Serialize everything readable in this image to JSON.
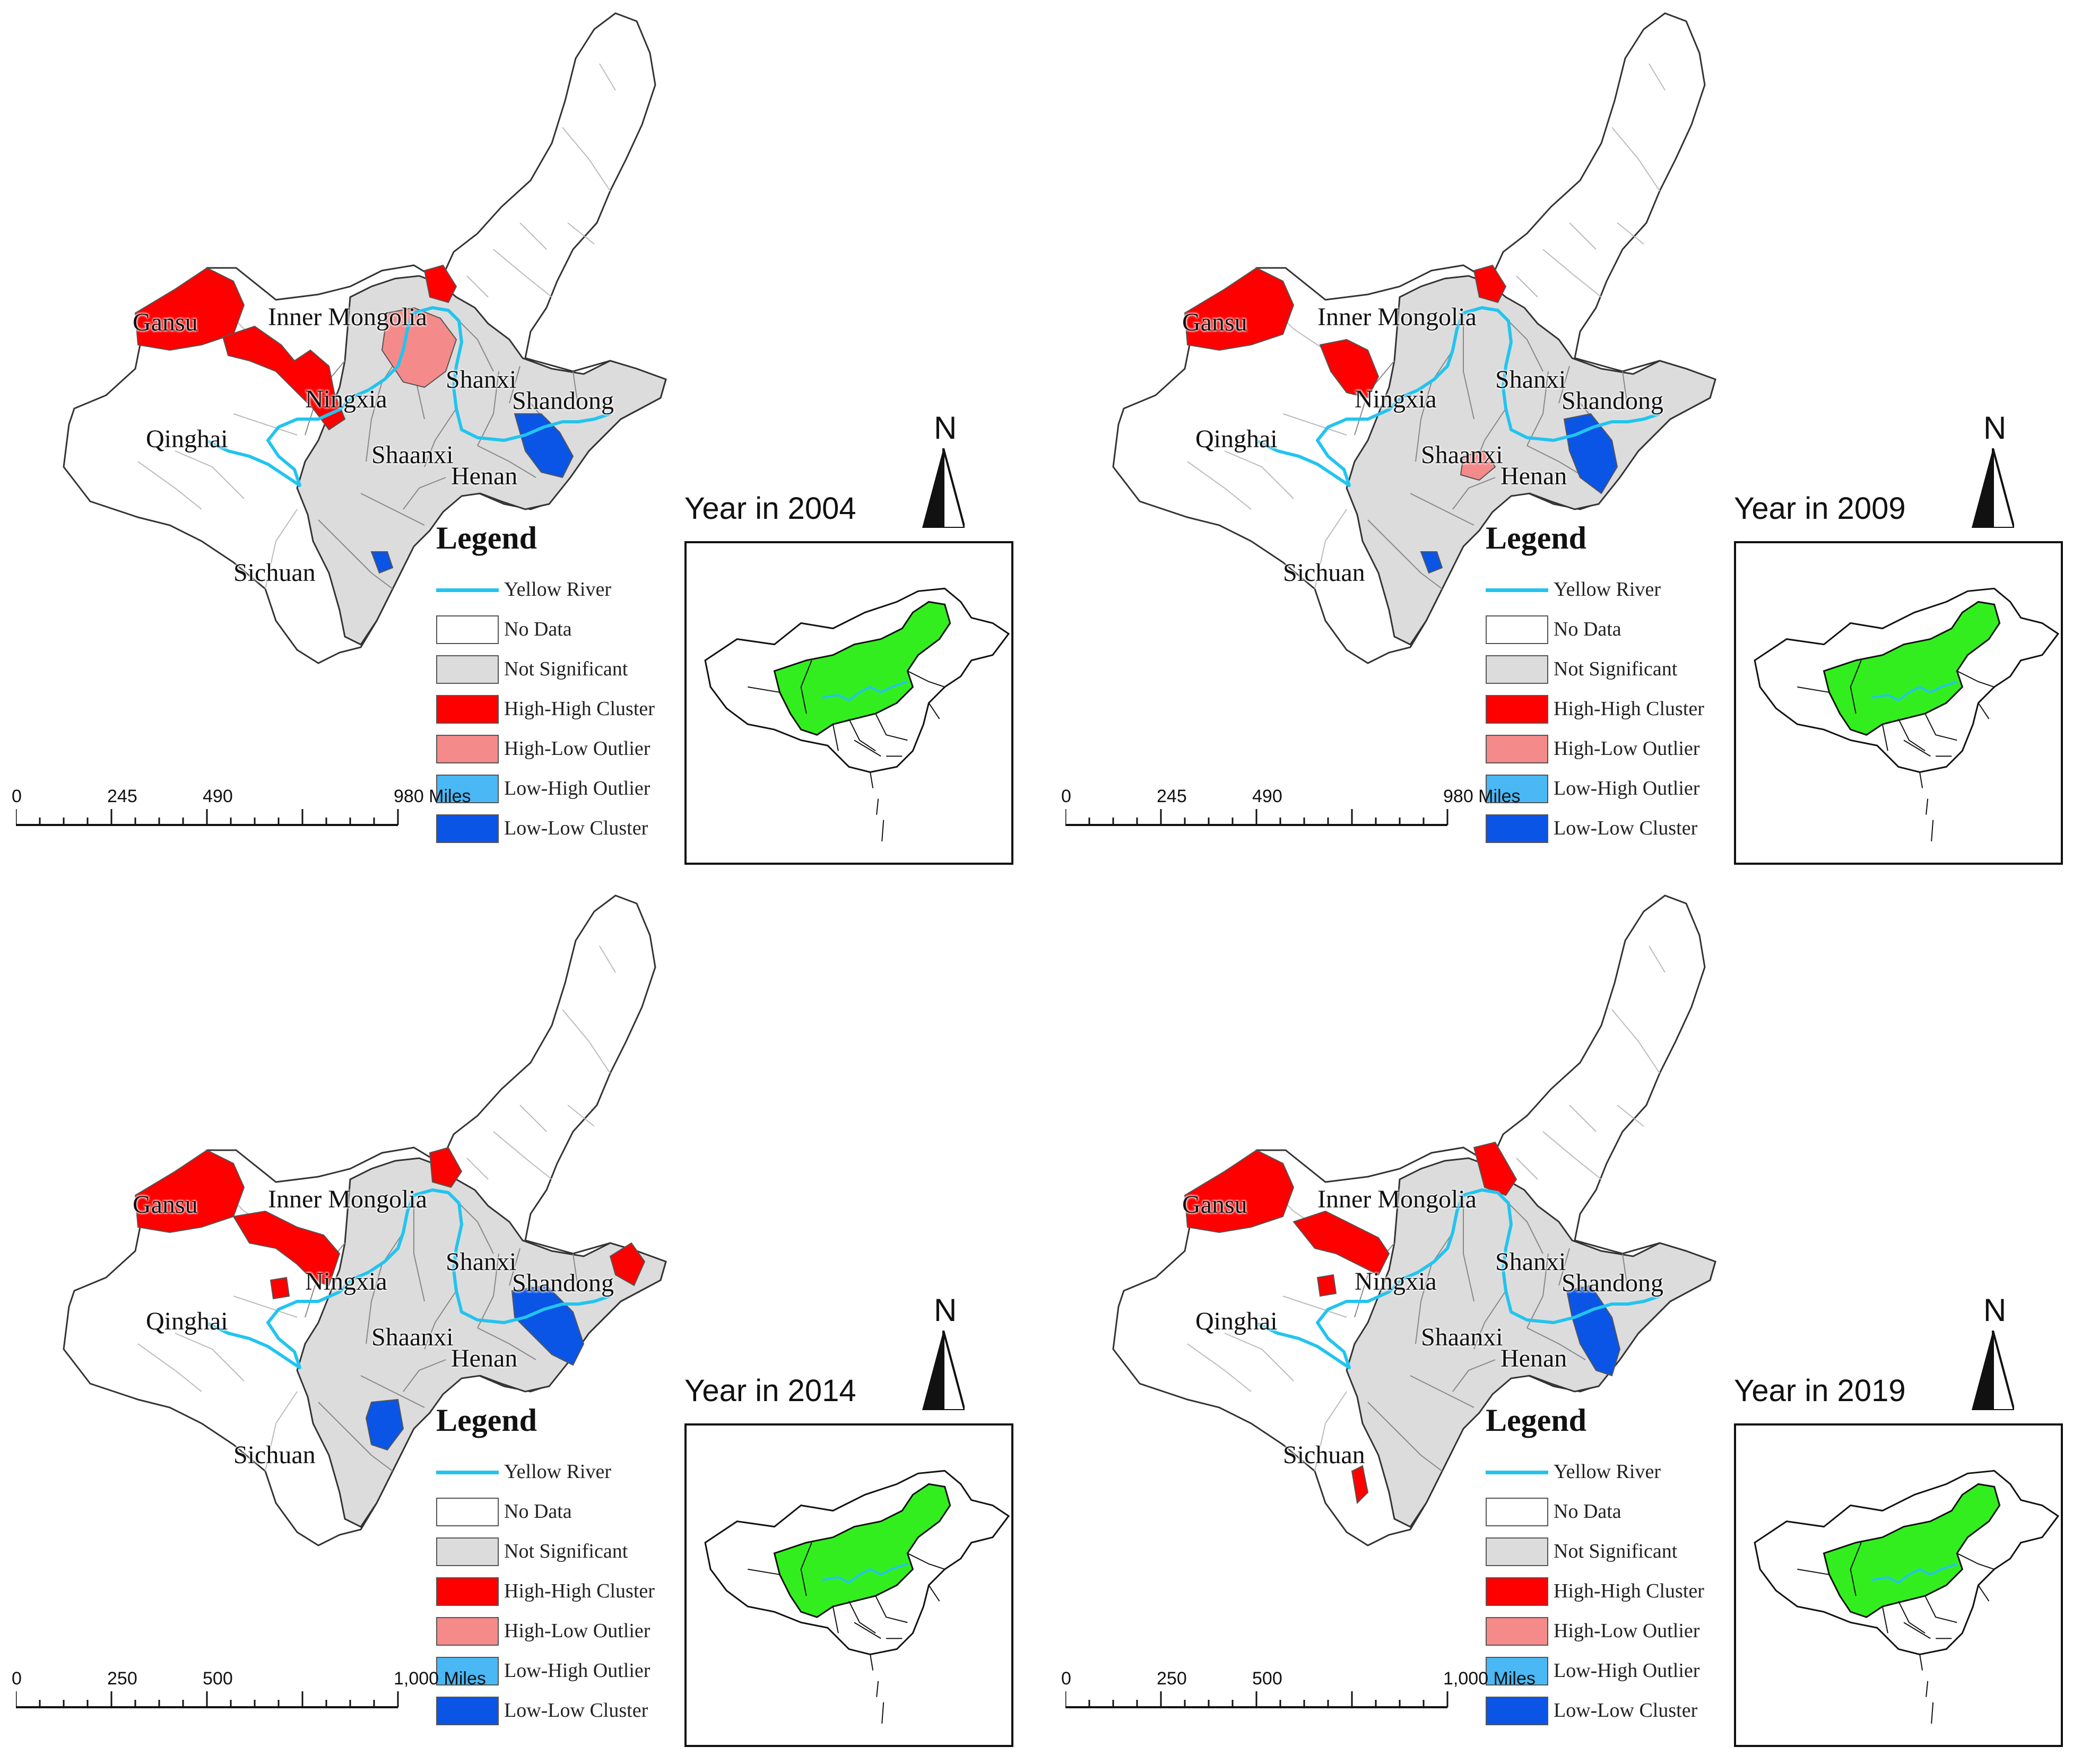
{
  "legend": {
    "title": "Legend",
    "items": [
      {
        "label": "Yellow River",
        "color": "#22c4ef",
        "kind": "line"
      },
      {
        "label": "No Data",
        "color": "#ffffff",
        "kind": "box"
      },
      {
        "label": "Not Significant",
        "color": "#dcdcdc",
        "kind": "box"
      },
      {
        "label": "High-High Cluster",
        "color": "#ff0000",
        "kind": "box"
      },
      {
        "label": "High-Low Outlier",
        "color": "#f58a8a",
        "kind": "box"
      },
      {
        "label": "Low-High Outlier",
        "color": "#4ab8f5",
        "kind": "box"
      },
      {
        "label": "Low-Low Cluster",
        "color": "#0a55e6",
        "kind": "box"
      }
    ]
  },
  "north": "N",
  "inset_color": "#33ee1f",
  "panels": [
    {
      "year": "Year in 2004",
      "scale": [
        "0",
        "245",
        "490",
        "980 Miles"
      ],
      "labels": {
        "gansu": "Gansu",
        "inner_mongolia": "Inner Mongolia",
        "ningxia": "Ningxia",
        "shanxi": "Shanxi",
        "shandong": "Shandong",
        "qinghai": "Qinghai",
        "shaanxi": "Shaanxi",
        "henan": "Henan",
        "sichuan": "Sichuan"
      }
    },
    {
      "year": "Year in 2009",
      "scale": [
        "0",
        "245",
        "490",
        "980 Miles"
      ],
      "labels": {
        "gansu": "Gansu",
        "inner_mongolia": "Inner Mongolia",
        "ningxia": "Ningxia",
        "shanxi": "Shanxi",
        "shandong": "Shandong",
        "qinghai": "Qinghai",
        "shaanxi": "Shaanxi",
        "henan": "Henan",
        "sichuan": "Sichuan"
      }
    },
    {
      "year": "Year in 2014",
      "scale": [
        "0",
        "250",
        "500",
        "1,000 Miles"
      ],
      "labels": {
        "gansu": "Gansu",
        "inner_mongolia": "Inner Mongolia",
        "ningxia": "Ningxia",
        "shanxi": "Shanxi",
        "shandong": "Shandong",
        "qinghai": "Qinghai",
        "shaanxi": "Shaanxi",
        "henan": "Henan",
        "sichuan": "Sichuan"
      }
    },
    {
      "year": "Year in 2019",
      "scale": [
        "0",
        "250",
        "500",
        "1,000 Miles"
      ],
      "labels": {
        "gansu": "Gansu",
        "inner_mongolia": "Inner Mongolia",
        "ningxia": "Ningxia",
        "shanxi": "Shanxi",
        "shandong": "Shandong",
        "qinghai": "Qinghai",
        "shaanxi": "Shaanxi",
        "henan": "Henan",
        "sichuan": "Sichuan"
      }
    }
  ]
}
